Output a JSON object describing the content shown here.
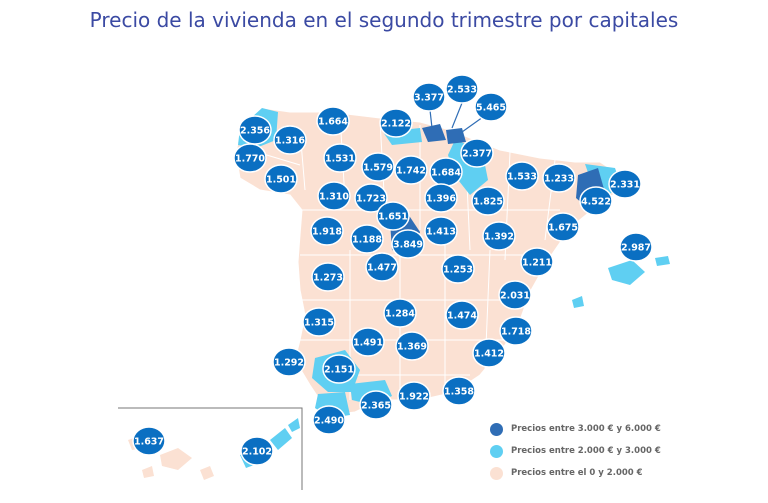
{
  "title": "Precio de la vivienda en el segundo trimestre por capitales",
  "colors": {
    "bubble": "#0a6fc2",
    "high": "#2f6db5",
    "mid": "#5fcff2",
    "low": "#fbe1d3"
  },
  "legend": [
    {
      "label": "Precios entre 3.000 € y 6.000 €",
      "color": "#2f6db5"
    },
    {
      "label": "Precios entre 2.000 € y 3.000 €",
      "color": "#5fcff2"
    },
    {
      "label": "Precios entre el 0 y 2.000 €",
      "color": "#fbe1d3"
    }
  ],
  "prices": {
    "coruna": "2.356",
    "lugo": "1.316",
    "pontevedra": "1.770",
    "ourense": "1.501",
    "oviedo": "1.664",
    "santander": "2.122",
    "bilbao": "3.377",
    "vitoria": "2.533",
    "san_sebastian": "5.465",
    "pamplona": "2.377",
    "leon": "1.531",
    "palencia": "1.579",
    "burgos": "1.742",
    "logrono": "1.684",
    "huesca": "1.533",
    "lleida": "1.233",
    "girona": "2.331",
    "barcelona": "4.522",
    "zamora": "1.310",
    "valladolid": "1.723",
    "soria": "1.396",
    "zaragoza": "1.825",
    "tarragona": "1.675",
    "salamanca": "1.918",
    "segovia": "1.651",
    "avila": "1.188",
    "madrid": "3.849",
    "guadalajara": "1.413",
    "teruel": "1.392",
    "palma": "2.987",
    "caceres": "1.273",
    "toledo": "1.477",
    "cuenca": "1.253",
    "castellon": "1.211",
    "valencia": "2.031",
    "badajoz": "1.315",
    "ciudad_real": "1.284",
    "albacete": "1.474",
    "alicante": "1.718",
    "cordoba": "1.491",
    "jaen": "1.369",
    "murcia": "1.412",
    "huelva": "1.292",
    "sevilla": "2.151",
    "granada": "1.922",
    "almeria": "1.358",
    "malaga": "2.365",
    "cadiz": "2.490",
    "santa_cruz": "1.637",
    "las_palmas": "2.102"
  }
}
